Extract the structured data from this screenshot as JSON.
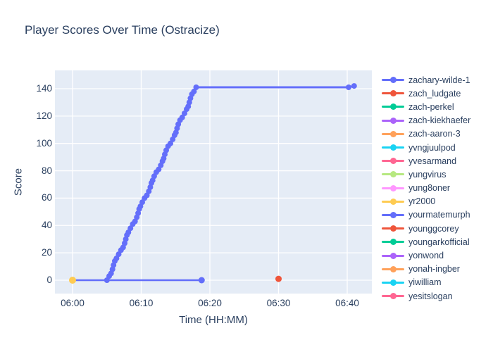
{
  "title": "Player Scores Over Time (Ostracize)",
  "axes": {
    "x_title": "Time (HH:MM)",
    "y_title": "Score"
  },
  "colors": {
    "background": "#FFFFFF",
    "plot_background": "#E5ECF6",
    "grid": "#FFFFFF",
    "text": "#2A3F5F"
  },
  "legend": [
    {
      "label": "zachary-wilde-1",
      "color": "#636EFA"
    },
    {
      "label": "zach_ludgate",
      "color": "#EF553B"
    },
    {
      "label": "zach-perkel",
      "color": "#00CC96"
    },
    {
      "label": "zach-kiekhaefer",
      "color": "#AB63FA"
    },
    {
      "label": "zach-aaron-3",
      "color": "#FFA15A"
    },
    {
      "label": "yvngjuulpod",
      "color": "#19D3F3"
    },
    {
      "label": "yvesarmand",
      "color": "#FF6692"
    },
    {
      "label": "yungvirus",
      "color": "#B6E880"
    },
    {
      "label": "yung8oner",
      "color": "#FF97FF"
    },
    {
      "label": "yr2000",
      "color": "#FECB52"
    },
    {
      "label": "yourmatemurph",
      "color": "#636EFA"
    },
    {
      "label": "younggcorey",
      "color": "#EF553B"
    },
    {
      "label": "youngarkofficial",
      "color": "#00CC96"
    },
    {
      "label": "yonwond",
      "color": "#AB63FA"
    },
    {
      "label": "yonah-ingber",
      "color": "#FFA15A"
    },
    {
      "label": "yiwilliam",
      "color": "#19D3F3"
    },
    {
      "label": "yesitslogan",
      "color": "#FF6692"
    }
  ],
  "chart_data": {
    "type": "line",
    "title": "Player Scores Over Time (Ostracize)",
    "xlabel": "Time (HH:MM)",
    "ylabel": "Score",
    "x_tick_labels": [
      "06:00",
      "06:10",
      "06:20",
      "06:30",
      "06:40"
    ],
    "x_tick_minutes": [
      0,
      10,
      20,
      30,
      40
    ],
    "y_ticks": [
      0,
      20,
      40,
      60,
      80,
      100,
      120,
      140
    ],
    "x_unit": "minutes after 06:00",
    "x_range_minutes": [
      -2.56,
      43.6
    ],
    "y_range": [
      -10.3,
      153.3
    ],
    "grid": true,
    "legend_position": "right",
    "series": [
      {
        "name": "zachary-wilde-1",
        "color": "#636EFA",
        "mode": "lines+markers",
        "line_width": 3,
        "marker_r": 4,
        "wavy": true,
        "points": [
          [
            5.0,
            0
          ],
          [
            5.25,
            3
          ],
          [
            5.5,
            5
          ],
          [
            5.75,
            8
          ],
          [
            6.0,
            11
          ],
          [
            6.25,
            14
          ],
          [
            6.5,
            16
          ],
          [
            6.75,
            19
          ],
          [
            7.0,
            22
          ],
          [
            7.25,
            24
          ],
          [
            7.5,
            27
          ],
          [
            7.75,
            30
          ],
          [
            8.0,
            33
          ],
          [
            8.25,
            35
          ],
          [
            8.5,
            38
          ],
          [
            8.75,
            41
          ],
          [
            9.0,
            43
          ],
          [
            9.25,
            46
          ],
          [
            9.5,
            49
          ],
          [
            9.75,
            52
          ],
          [
            10.0,
            54
          ],
          [
            10.25,
            57
          ],
          [
            10.5,
            60
          ],
          [
            10.75,
            62
          ],
          [
            11.0,
            65
          ],
          [
            11.25,
            68
          ],
          [
            11.5,
            71
          ],
          [
            11.75,
            73
          ],
          [
            12.0,
            76
          ],
          [
            12.25,
            79
          ],
          [
            12.5,
            81
          ],
          [
            12.75,
            84
          ],
          [
            13.0,
            87
          ],
          [
            13.25,
            89
          ],
          [
            13.5,
            92
          ],
          [
            13.75,
            95
          ],
          [
            14.0,
            98
          ],
          [
            14.25,
            100
          ],
          [
            14.5,
            103
          ],
          [
            14.75,
            106
          ],
          [
            15.0,
            108
          ],
          [
            15.25,
            111
          ],
          [
            15.5,
            114
          ],
          [
            15.75,
            117
          ],
          [
            16.0,
            119
          ],
          [
            16.25,
            122
          ],
          [
            16.5,
            125
          ],
          [
            16.75,
            127
          ],
          [
            17.0,
            130
          ],
          [
            17.25,
            133
          ],
          [
            17.5,
            136
          ],
          [
            17.75,
            138
          ],
          [
            18.0,
            141
          ],
          [
            40.2,
            141
          ],
          [
            41.0,
            142
          ]
        ]
      },
      {
        "name": "yourmatemurph",
        "color": "#636EFA",
        "mode": "lines+markers",
        "line_width": 2.5,
        "marker_r": 4.5,
        "points": [
          [
            0,
            0
          ],
          [
            18.8,
            0
          ]
        ]
      },
      {
        "name": "zach_ludgate",
        "color": "#EF553B",
        "mode": "markers",
        "marker_r": 4.5,
        "points": [
          [
            30,
            1
          ]
        ]
      },
      {
        "name": "yr2000",
        "color": "#FECB52",
        "mode": "markers",
        "marker_r": 5,
        "points": [
          [
            0,
            0
          ]
        ]
      }
    ]
  }
}
